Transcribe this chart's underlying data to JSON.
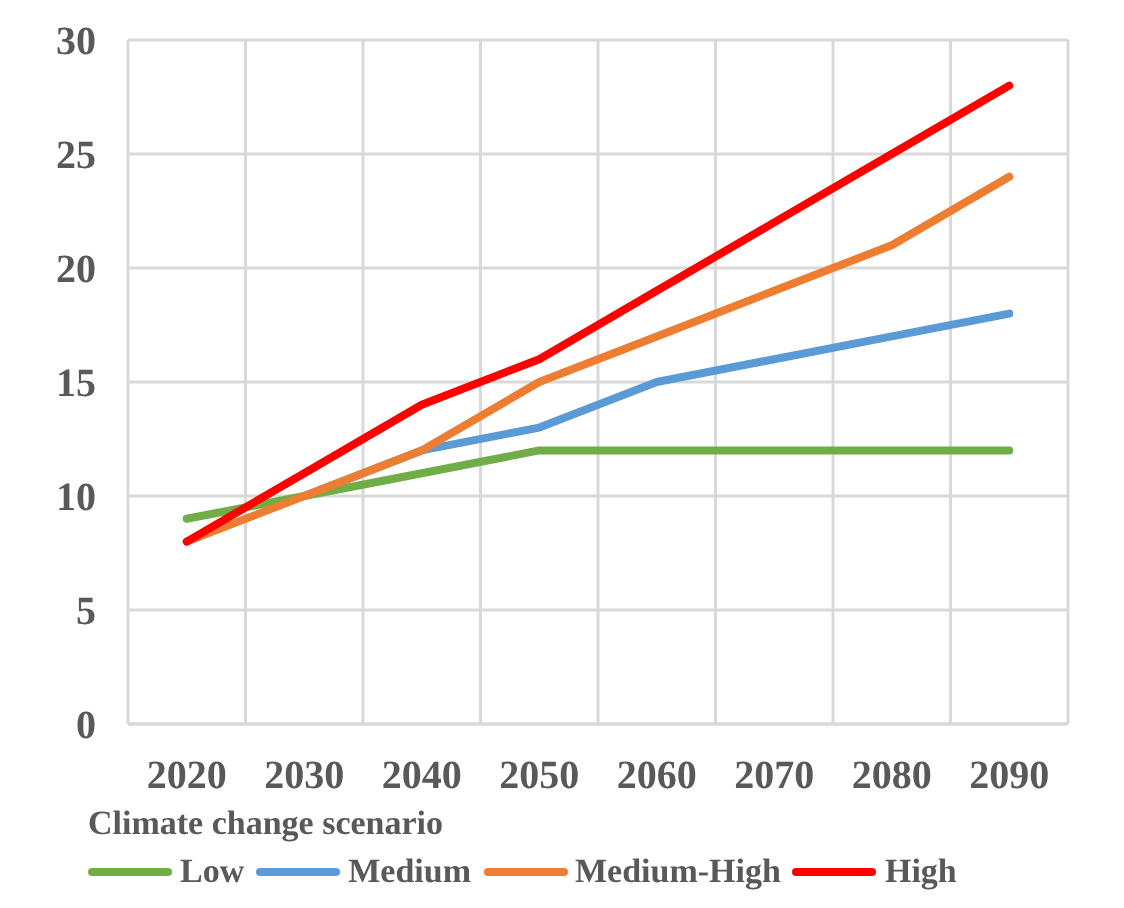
{
  "chart_data": {
    "type": "line",
    "legend_title": "Climate change scenario",
    "categories": [
      "2020",
      "2030",
      "2040",
      "2050",
      "2060",
      "2070",
      "2080",
      "2090"
    ],
    "series": [
      {
        "name": "Low",
        "color": "#70ad47",
        "values": [
          9,
          10,
          11,
          12,
          12,
          12,
          12,
          12
        ]
      },
      {
        "name": "Medium",
        "color": "#5b9bd5",
        "values": [
          null,
          10,
          12,
          13,
          15,
          16,
          17,
          18
        ]
      },
      {
        "name": "Medium-High",
        "color": "#ed7d31",
        "values": [
          8,
          10,
          12,
          15,
          17,
          19,
          21,
          24
        ]
      },
      {
        "name": "High",
        "color": "#ff0000",
        "values": [
          8,
          11,
          14,
          16,
          19,
          22,
          25,
          28
        ]
      }
    ],
    "ylim": [
      0,
      30
    ],
    "yticks": [
      0,
      5,
      10,
      15,
      20,
      25,
      30
    ],
    "grid": true,
    "legend": "bottom",
    "marker": "none",
    "line_style": "solid"
  }
}
